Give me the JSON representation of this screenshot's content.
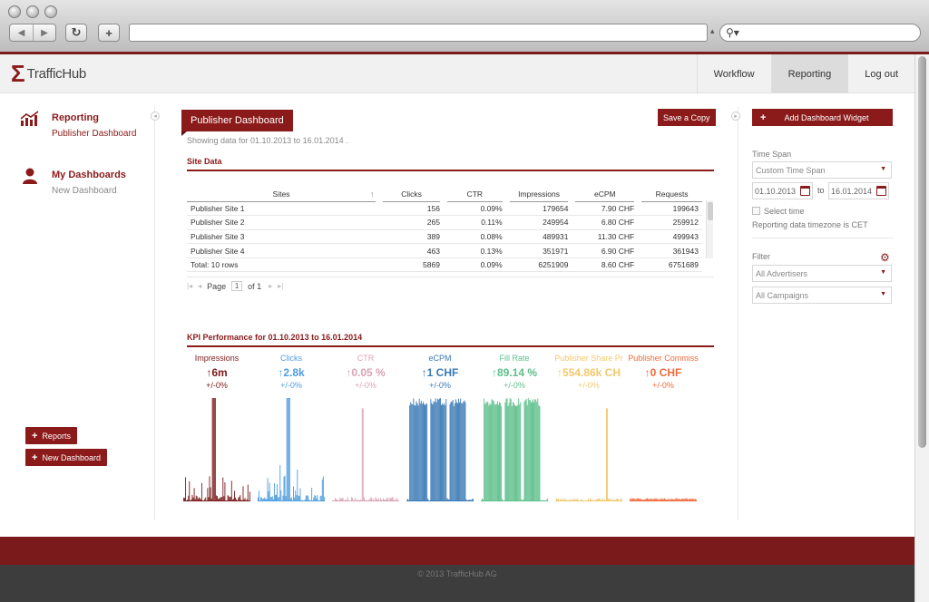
{
  "browser": {
    "back_icon": "back-arrow-icon",
    "forward_icon": "forward-arrow-icon",
    "reload_icon": "reload-icon",
    "new_tab_icon": "plus-icon",
    "search_icon": "search-icon"
  },
  "brand": {
    "logo_mark": "Σ",
    "logo_text": "TrafficHub",
    "accent": "#8b1a1a"
  },
  "top_nav": [
    {
      "label": "Workflow",
      "active": false
    },
    {
      "label": "Reporting",
      "active": true
    },
    {
      "label": "Log out",
      "active": false
    }
  ],
  "sidebar": {
    "reporting": {
      "title": "Reporting",
      "sub": "Publisher Dashboard",
      "icon": "chart-trend-icon"
    },
    "dashboards": {
      "title": "My Dashboards",
      "sub": "New Dashboard",
      "icon": "user-icon"
    },
    "buttons": {
      "reports": "Reports",
      "new_dashboard": "New Dashboard"
    }
  },
  "main": {
    "title": "Publisher Dashboard",
    "save_copy": "Save a Copy",
    "showing": "Showing data for 01.10.2013 to 16.01.2014 .",
    "site_data_title": "Site Data",
    "table": {
      "columns": [
        "Sites",
        "Clicks",
        "CTR",
        "Impressions",
        "eCPM",
        "Requests"
      ],
      "sort_icon": "↑",
      "rows": [
        [
          "Publisher Site 1",
          "156",
          "0.09%",
          "179654",
          "7.90 CHF",
          "199643"
        ],
        [
          "Publisher Site 2",
          "265",
          "0.11%",
          "249954",
          "6.80 CHF",
          "259912"
        ],
        [
          "Publisher Site 3",
          "389",
          "0.08%",
          "489931",
          "11.30 CHF",
          "499943"
        ],
        [
          "Publisher Site 4",
          "463",
          "0.13%",
          "351971",
          "6.90 CHF",
          "361943"
        ],
        [
          "Total: 10 rows",
          "5869",
          "0.09%",
          "6251909",
          "8.60 CHF",
          "6751689"
        ]
      ]
    },
    "pager": {
      "page_label": "Page",
      "page": "1",
      "of": "of 1"
    },
    "kpi_title": "KPI Performance for 01.10.2013 to 16.01.2014",
    "kpis": [
      {
        "label": "Impressions",
        "value": "↑6m",
        "delta": "+/-0%",
        "color": "#7a1a1a",
        "label_color": "#7a1a1a",
        "level": 0.95,
        "style": "spiky"
      },
      {
        "label": "Clicks",
        "value": "↑2.8k",
        "delta": "+/-0%",
        "color": "#4d9de0",
        "label_color": "#4d9de0",
        "level": 0.95,
        "style": "spiky"
      },
      {
        "label": "CTR",
        "value": "↑0.05 %",
        "delta": "+/-0%",
        "color": "#d9a3b5",
        "label_color": "#d9a3b5",
        "level": 0.95,
        "style": "spiky"
      },
      {
        "label": "eCPM",
        "value": "↑1 CHF",
        "delta": "+/-0%",
        "color": "#3a79b5",
        "label_color": "#3a79b5",
        "level": 0.95,
        "style": "block"
      },
      {
        "label": "Fill Rate",
        "value": "↑89.14 %",
        "delta": "+/-0%",
        "color": "#5cbf8a",
        "label_color": "#5cbf8a",
        "level": 0.95,
        "style": "block"
      },
      {
        "label": "Publisher Share Pr",
        "value": "↑554.86k CH",
        "delta": "+/-0%",
        "color": "#f2c96b",
        "label_color": "#f2c96b",
        "level": 0.95,
        "style": "spike"
      },
      {
        "label": "Publisher Commiss",
        "value": "↑0 CHF",
        "delta": "+/-0%",
        "color": "#f06a3b",
        "label_color": "#f06a3b",
        "level": 0.03,
        "style": "flat"
      }
    ]
  },
  "right": {
    "add_widget": "Add Dashboard Widget",
    "time_span_label": "Time Span",
    "time_span_value": "Custom Time Span",
    "date_from": "01.10.2013",
    "date_to_label": "to",
    "date_to": "16.01.2014",
    "select_time": "Select time",
    "timezone": "Reporting data timezone is CET",
    "filter_label": "Filter",
    "advertisers": "All Advertisers",
    "campaigns": "All Campaigns",
    "gear_icon": "gear-icon"
  },
  "footer": {
    "copyright": "© 2013 TrafficHub AG"
  }
}
